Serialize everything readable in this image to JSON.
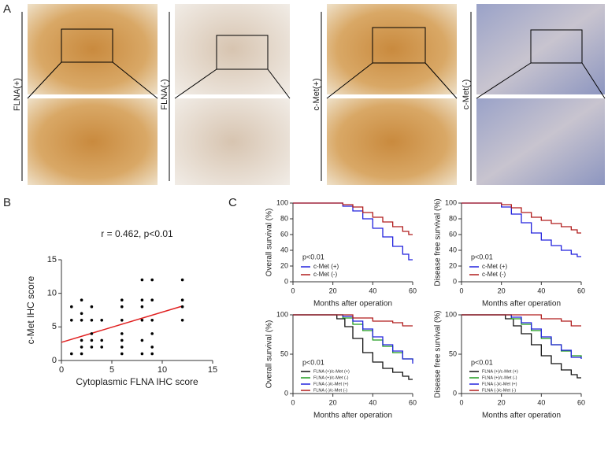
{
  "panels": {
    "labels": [
      "A",
      "B",
      "C"
    ],
    "image_labels": [
      "FLNA(+)",
      "FLNA(-)",
      "c-Met(+)",
      "c-Met(-)"
    ]
  },
  "chart_data": [
    {
      "type": "scatter",
      "title": "r = 0.462, p<0.01",
      "xlabel": "Cytoplasmic FLNA IHC score",
      "ylabel": "c-Met IHC score",
      "x": [
        1,
        1,
        1,
        2,
        2,
        2,
        2,
        2,
        2,
        3,
        3,
        3,
        3,
        3,
        4,
        4,
        4,
        6,
        6,
        6,
        6,
        6,
        6,
        6,
        8,
        8,
        8,
        8,
        8,
        8,
        9,
        9,
        9,
        9,
        9,
        9,
        12,
        12,
        12,
        12
      ],
      "values": [
        8,
        6,
        1,
        9,
        7,
        6,
        3,
        2,
        1,
        8,
        6,
        4,
        3,
        2,
        6,
        3,
        2,
        9,
        8,
        6,
        4,
        3,
        2,
        1,
        12,
        9,
        8,
        6,
        3,
        1,
        12,
        9,
        6,
        4,
        2,
        1,
        12,
        9,
        8,
        6
      ],
      "color": "#000000",
      "fit": {
        "x": [
          0,
          12
        ],
        "values": [
          2.7,
          8.1
        ],
        "color": "#e02020"
      },
      "xlim": [
        0,
        15
      ],
      "ylim": [
        0,
        15
      ],
      "xticks": [
        0,
        5,
        10,
        15
      ],
      "yticks": [
        0,
        5,
        10,
        15
      ]
    },
    {
      "type": "step",
      "xlabel": "Months after operation",
      "ylabel": "Overall survival (%)",
      "annotation": "p<0.01",
      "series": [
        {
          "name": "c-Met (+)",
          "color": "#2222dd",
          "x": [
            0,
            18,
            25,
            30,
            35,
            40,
            45,
            50,
            55,
            58,
            60
          ],
          "values": [
            100,
            100,
            96,
            90,
            80,
            68,
            57,
            45,
            35,
            28,
            28
          ]
        },
        {
          "name": "c-Met (-)",
          "color": "#b01c1c",
          "x": [
            0,
            20,
            25,
            30,
            35,
            40,
            45,
            50,
            55,
            58,
            60
          ],
          "values": [
            100,
            100,
            98,
            95,
            88,
            82,
            76,
            70,
            64,
            60,
            60
          ]
        }
      ],
      "xlim": [
        0,
        60
      ],
      "ylim": [
        0,
        100
      ],
      "xticks": [
        0,
        20,
        40,
        60
      ],
      "yticks": [
        0,
        20,
        40,
        60,
        80,
        100
      ]
    },
    {
      "type": "step",
      "xlabel": "Months after operation",
      "ylabel": "Disease free survival (%)",
      "annotation": "p<0.01",
      "series": [
        {
          "name": "c-Met (+)",
          "color": "#2222dd",
          "x": [
            0,
            12,
            20,
            25,
            30,
            35,
            40,
            45,
            50,
            55,
            58,
            60
          ],
          "values": [
            100,
            100,
            95,
            86,
            75,
            62,
            53,
            46,
            40,
            35,
            32,
            32
          ]
        },
        {
          "name": "c-Met (-)",
          "color": "#b01c1c",
          "x": [
            0,
            15,
            20,
            25,
            30,
            35,
            40,
            45,
            50,
            55,
            58,
            60
          ],
          "values": [
            100,
            100,
            98,
            94,
            88,
            82,
            78,
            74,
            70,
            66,
            62,
            62
          ]
        }
      ],
      "xlim": [
        0,
        60
      ],
      "ylim": [
        0,
        100
      ],
      "xticks": [
        0,
        20,
        40,
        60
      ],
      "yticks": [
        0,
        20,
        40,
        60,
        80,
        100
      ]
    },
    {
      "type": "step",
      "xlabel": "Months after operation",
      "ylabel": "Overall survival (%)",
      "annotation": "p<0.01",
      "series": [
        {
          "name": "FLNA (+)/c-Met (+)",
          "color": "#111111",
          "x": [
            0,
            18,
            22,
            26,
            30,
            35,
            40,
            45,
            50,
            55,
            58,
            60
          ],
          "values": [
            100,
            100,
            95,
            85,
            70,
            52,
            40,
            32,
            27,
            22,
            18,
            18
          ]
        },
        {
          "name": "FLNA (+)/c-Met (-)",
          "color": "#1f9a1f",
          "x": [
            0,
            20,
            25,
            30,
            35,
            40,
            45,
            50,
            55,
            60
          ],
          "values": [
            100,
            100,
            96,
            88,
            80,
            68,
            60,
            52,
            44,
            42
          ]
        },
        {
          "name": "FLNA (-)/c-Met (+)",
          "color": "#2222dd",
          "x": [
            0,
            20,
            25,
            30,
            35,
            40,
            45,
            50,
            55,
            60
          ],
          "values": [
            100,
            100,
            98,
            92,
            82,
            72,
            62,
            54,
            44,
            38
          ]
        },
        {
          "name": "FLNA (-)/c-Met (-)",
          "color": "#b01c1c",
          "x": [
            0,
            25,
            30,
            40,
            50,
            55,
            60
          ],
          "values": [
            100,
            100,
            96,
            92,
            90,
            86,
            86
          ]
        }
      ],
      "xlim": [
        0,
        60
      ],
      "ylim": [
        0,
        100
      ],
      "xticks": [
        0,
        20,
        40,
        60
      ],
      "yticks": [
        0,
        50,
        100
      ]
    },
    {
      "type": "step",
      "xlabel": "Months after operation",
      "ylabel": "Disease free survival (%)",
      "annotation": "p<0.01",
      "series": [
        {
          "name": "FLNA (+)/c-Met (+)",
          "color": "#111111",
          "x": [
            0,
            18,
            22,
            26,
            30,
            35,
            40,
            45,
            50,
            55,
            58,
            60
          ],
          "values": [
            100,
            100,
            95,
            86,
            76,
            62,
            48,
            38,
            30,
            24,
            20,
            20
          ]
        },
        {
          "name": "FLNA (+)/c-Met (-)",
          "color": "#1f9a1f",
          "x": [
            0,
            20,
            25,
            30,
            35,
            40,
            45,
            50,
            55,
            60
          ],
          "values": [
            100,
            100,
            95,
            88,
            80,
            70,
            62,
            54,
            48,
            46
          ]
        },
        {
          "name": "FLNA (-)/c-Met (+)",
          "color": "#2222dd",
          "x": [
            0,
            20,
            25,
            30,
            35,
            40,
            45,
            50,
            55,
            60
          ],
          "values": [
            100,
            100,
            97,
            90,
            82,
            72,
            62,
            55,
            46,
            44
          ]
        },
        {
          "name": "FLNA (-)/c-Met (-)",
          "color": "#b01c1c",
          "x": [
            0,
            30,
            40,
            50,
            55,
            60
          ],
          "values": [
            100,
            100,
            95,
            92,
            86,
            86
          ]
        }
      ],
      "xlim": [
        0,
        60
      ],
      "ylim": [
        0,
        100
      ],
      "xticks": [
        0,
        20,
        40,
        60
      ],
      "yticks": [
        0,
        50,
        100
      ]
    }
  ]
}
